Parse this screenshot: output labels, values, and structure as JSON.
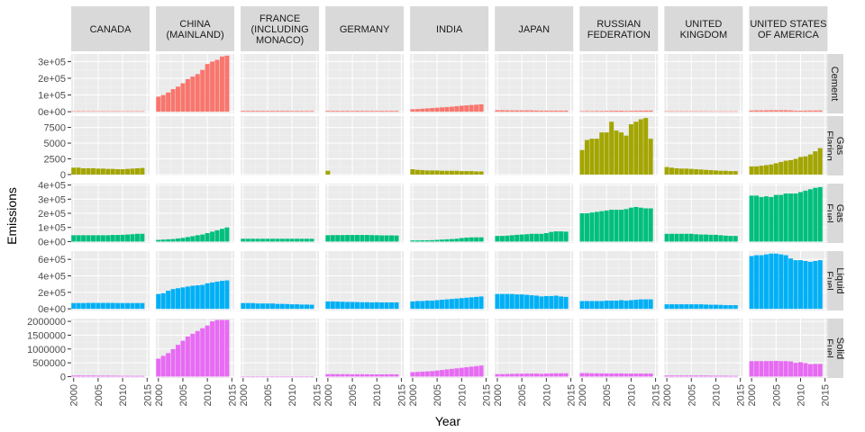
{
  "chart_data": {
    "type": "bar",
    "xlabel": "Year",
    "ylabel": "Emissions",
    "x_ticks": [
      "2000",
      "2005",
      "2010",
      "2015"
    ],
    "xlim": [
      1999.5,
      2015.5
    ],
    "years": [
      2000,
      2001,
      2002,
      2003,
      2004,
      2005,
      2006,
      2007,
      2008,
      2009,
      2010,
      2011,
      2012,
      2013,
      2014
    ],
    "facet_rows": "fuel",
    "facet_cols": "country",
    "scales": "free_y",
    "grid": true,
    "legend": "none",
    "columns": [
      "CANADA",
      "CHINA (MAINLAND)",
      "FRANCE (INCLUDING MONACO)",
      "GERMANY",
      "INDIA",
      "JAPAN",
      "RUSSIAN FEDERATION",
      "UNITED KINGDOM",
      "UNITED STATES OF AMERICA"
    ],
    "rows": [
      {
        "name": "Cement",
        "color": "#F8766D",
        "ylim": [
          -10000,
          345000
        ],
        "y_ticks": [
          0,
          100000,
          200000,
          300000
        ],
        "y_tick_labels": [
          "0e+00",
          "1e+05",
          "2e+05",
          "3e+05"
        ],
        "values": [
          [
            3000,
            3000,
            3000,
            3000,
            3000,
            3000,
            3000,
            3000,
            3000,
            3000,
            3000,
            3000,
            3000,
            3000,
            3000
          ],
          [
            90000,
            100000,
            115000,
            135000,
            150000,
            170000,
            195000,
            210000,
            225000,
            250000,
            285000,
            300000,
            310000,
            330000,
            335000
          ],
          [
            5000,
            5000,
            5000,
            5000,
            5000,
            5000,
            5000,
            5000,
            5000,
            5000,
            4500,
            4500,
            4500,
            4500,
            4500
          ],
          [
            5000,
            5000,
            5000,
            5000,
            5000,
            5000,
            5000,
            5000,
            5000,
            5000,
            5000,
            5000,
            5000,
            5000,
            5000
          ],
          [
            15000,
            16000,
            18000,
            20000,
            22000,
            24000,
            26000,
            28000,
            30000,
            33000,
            36000,
            38000,
            40000,
            42000,
            44000
          ],
          [
            9000,
            9000,
            8500,
            8000,
            8000,
            8000,
            8000,
            8000,
            7000,
            6500,
            6500,
            6500,
            6500,
            6500,
            6500
          ],
          [
            3500,
            4000,
            4000,
            4500,
            4500,
            5000,
            5500,
            6000,
            6000,
            5000,
            5500,
            6000,
            6500,
            7000,
            7000
          ],
          [
            3000,
            3000,
            3000,
            3000,
            3000,
            3000,
            3000,
            3000,
            2800,
            2500,
            2500,
            2500,
            2500,
            2500,
            2500
          ],
          [
            7500,
            8000,
            8000,
            8500,
            9000,
            9000,
            9000,
            9000,
            8000,
            6000,
            6000,
            6500,
            7000,
            7500,
            7500
          ]
        ]
      },
      {
        "name": "Gas Flaring",
        "color": "#A3A500",
        "ylim": [
          -150,
          9300
        ],
        "y_ticks": [
          0,
          2500,
          5000,
          7500
        ],
        "y_tick_labels": [
          "0",
          "2500",
          "5000",
          "7500"
        ],
        "values": [
          [
            1100,
            1100,
            1000,
            1000,
            1000,
            950,
            950,
            900,
            900,
            850,
            850,
            900,
            950,
            1000,
            1050
          ],
          [
            0,
            0,
            0,
            0,
            0,
            0,
            0,
            0,
            0,
            0,
            0,
            0,
            0,
            0,
            0
          ],
          [
            0,
            0,
            0,
            0,
            0,
            0,
            0,
            0,
            0,
            0,
            0,
            0,
            0,
            0,
            0
          ],
          [
            600,
            0,
            0,
            0,
            0,
            0,
            0,
            0,
            0,
            0,
            0,
            0,
            0,
            0,
            0
          ],
          [
            850,
            750,
            700,
            650,
            650,
            650,
            600,
            600,
            600,
            600,
            550,
            550,
            550,
            500,
            500
          ],
          [
            0,
            0,
            0,
            0,
            0,
            0,
            0,
            0,
            0,
            0,
            0,
            0,
            0,
            0,
            0
          ],
          [
            3900,
            5500,
            5700,
            5700,
            6700,
            6700,
            8400,
            7000,
            6700,
            6200,
            8000,
            8400,
            8800,
            9000,
            5700
          ],
          [
            1200,
            1100,
            1000,
            950,
            950,
            900,
            850,
            800,
            750,
            700,
            650,
            600,
            600,
            550,
            550
          ],
          [
            1300,
            1300,
            1400,
            1500,
            1600,
            1800,
            2000,
            2200,
            2300,
            2500,
            2800,
            2900,
            3200,
            3700,
            4200
          ]
        ]
      },
      {
        "name": "Gas Fuel",
        "color": "#00BF7D",
        "ylim": [
          -10000,
          410000
        ],
        "y_ticks": [
          0,
          100000,
          200000,
          300000,
          400000
        ],
        "y_tick_labels": [
          "0e+00",
          "1e+05",
          "2e+05",
          "3e+05",
          "4e+05"
        ],
        "values": [
          [
            45000,
            45000,
            45000,
            45000,
            45000,
            45000,
            45000,
            45000,
            47000,
            47000,
            48000,
            50000,
            52000,
            55000,
            55000
          ],
          [
            12000,
            14000,
            16000,
            18000,
            22000,
            26000,
            32000,
            38000,
            45000,
            50000,
            60000,
            70000,
            80000,
            90000,
            100000
          ],
          [
            20000,
            20000,
            20000,
            20000,
            20000,
            20000,
            20000,
            20000,
            20000,
            20000,
            20000,
            20000,
            20000,
            20000,
            20000
          ],
          [
            45000,
            46000,
            46000,
            46000,
            47000,
            47000,
            47000,
            47000,
            47000,
            46000,
            45000,
            44000,
            44000,
            44000,
            43000
          ],
          [
            8000,
            8000,
            9000,
            9000,
            10000,
            12000,
            14000,
            16000,
            18000,
            20000,
            25000,
            28000,
            30000,
            30000,
            30000
          ],
          [
            40000,
            40000,
            42000,
            45000,
            48000,
            50000,
            52000,
            55000,
            55000,
            55000,
            60000,
            68000,
            72000,
            72000,
            70000
          ],
          [
            200000,
            200000,
            205000,
            210000,
            215000,
            220000,
            225000,
            225000,
            225000,
            230000,
            240000,
            245000,
            240000,
            235000,
            235000
          ],
          [
            55000,
            55000,
            55000,
            55000,
            55000,
            55000,
            52000,
            50000,
            50000,
            48000,
            48000,
            45000,
            42000,
            40000,
            40000
          ],
          [
            325000,
            325000,
            315000,
            320000,
            315000,
            330000,
            330000,
            340000,
            340000,
            340000,
            350000,
            360000,
            370000,
            380000,
            385000
          ]
        ]
      },
      {
        "name": "Liquid Fuel",
        "color": "#00B0F6",
        "ylim": [
          -20000,
          700000
        ],
        "y_ticks": [
          0,
          200000,
          400000,
          600000
        ],
        "y_tick_labels": [
          "0e+00",
          "2e+05",
          "4e+05",
          "6e+05"
        ],
        "values": [
          [
            70000,
            70000,
            70000,
            72000,
            72000,
            72000,
            72000,
            72000,
            72000,
            70000,
            70000,
            70000,
            70000,
            70000,
            70000
          ],
          [
            180000,
            190000,
            220000,
            240000,
            250000,
            260000,
            270000,
            280000,
            285000,
            290000,
            310000,
            320000,
            330000,
            340000,
            345000
          ],
          [
            70000,
            70000,
            70000,
            65000,
            65000,
            65000,
            65000,
            60000,
            60000,
            58000,
            55000,
            55000,
            52000,
            52000,
            50000
          ],
          [
            90000,
            90000,
            88000,
            86000,
            84000,
            84000,
            82000,
            80000,
            80000,
            78000,
            80000,
            78000,
            78000,
            78000,
            78000
          ],
          [
            90000,
            95000,
            95000,
            100000,
            100000,
            105000,
            110000,
            115000,
            120000,
            125000,
            130000,
            135000,
            140000,
            145000,
            150000
          ],
          [
            180000,
            180000,
            180000,
            180000,
            175000,
            175000,
            170000,
            165000,
            160000,
            150000,
            155000,
            155000,
            160000,
            150000,
            145000
          ],
          [
            95000,
            95000,
            95000,
            95000,
            95000,
            100000,
            100000,
            100000,
            105000,
            100000,
            105000,
            110000,
            115000,
            115000,
            115000
          ],
          [
            55000,
            55000,
            55000,
            55000,
            55000,
            55000,
            55000,
            55000,
            52000,
            50000,
            50000,
            48000,
            45000,
            45000,
            45000
          ],
          [
            640000,
            650000,
            650000,
            660000,
            670000,
            670000,
            660000,
            650000,
            610000,
            590000,
            590000,
            580000,
            570000,
            580000,
            590000
          ]
        ]
      },
      {
        "name": "Solid Fuel",
        "color": "#E76BF3",
        "ylim": [
          -50000,
          2100000
        ],
        "y_ticks": [
          0,
          500000,
          1000000,
          1500000,
          2000000
        ],
        "y_tick_labels": [
          "0",
          "500000",
          "1000000",
          "1500000",
          "2000000"
        ],
        "values": [
          [
            40000,
            40000,
            38000,
            38000,
            38000,
            36000,
            34000,
            36000,
            34000,
            30000,
            28000,
            28000,
            26000,
            26000,
            25000
          ],
          [
            650000,
            750000,
            850000,
            1000000,
            1150000,
            1300000,
            1450000,
            1550000,
            1650000,
            1750000,
            1850000,
            2000000,
            2050000,
            2050000,
            2050000
          ],
          [
            15000,
            15000,
            15000,
            15000,
            15000,
            15000,
            15000,
            15000,
            15000,
            12000,
            12000,
            12000,
            12000,
            12000,
            10000
          ],
          [
            90000,
            90000,
            90000,
            88000,
            88000,
            86000,
            86000,
            86000,
            84000,
            80000,
            82000,
            82000,
            84000,
            84000,
            82000
          ],
          [
            160000,
            170000,
            180000,
            190000,
            200000,
            220000,
            240000,
            260000,
            280000,
            300000,
            320000,
            340000,
            360000,
            380000,
            400000
          ],
          [
            90000,
            90000,
            95000,
            100000,
            105000,
            105000,
            110000,
            110000,
            110000,
            100000,
            110000,
            115000,
            120000,
            120000,
            120000
          ],
          [
            130000,
            125000,
            120000,
            120000,
            115000,
            115000,
            115000,
            115000,
            115000,
            110000,
            110000,
            110000,
            110000,
            110000,
            110000
          ],
          [
            40000,
            40000,
            40000,
            40000,
            40000,
            40000,
            40000,
            40000,
            38000,
            35000,
            33000,
            32000,
            32000,
            28000,
            25000
          ],
          [
            560000,
            560000,
            560000,
            560000,
            565000,
            570000,
            560000,
            560000,
            550000,
            500000,
            520000,
            490000,
            450000,
            460000,
            460000
          ]
        ]
      }
    ]
  }
}
